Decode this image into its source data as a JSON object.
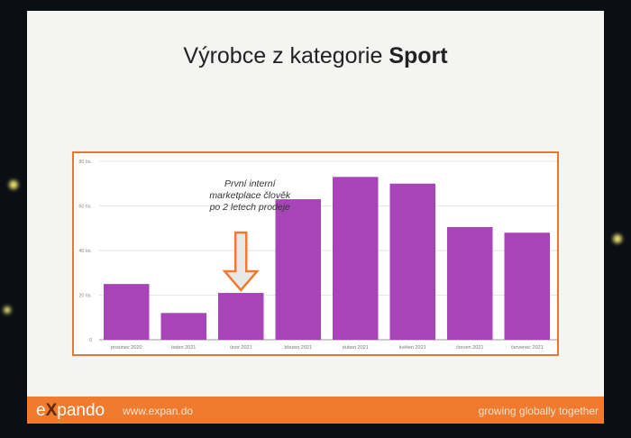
{
  "slide": {
    "title_prefix": "Výrobce z kategorie ",
    "title_bold": "Sport"
  },
  "annotation": {
    "lines": [
      "První interní",
      "marketplace člověk",
      "po 2 letech prodeje"
    ]
  },
  "footer": {
    "logo": "expando",
    "url": "www.expan.do",
    "tagline": "growing globally together"
  },
  "colors": {
    "bar": "#a745b8",
    "accent": "#f07a2e"
  },
  "chart_data": {
    "type": "bar",
    "categories": [
      "prosinec 2020",
      "leden 2021",
      "únor 2021",
      "březen 2021",
      "duben 2021",
      "květen 2021",
      "červen 2021",
      "červenec 2021"
    ],
    "values": [
      25000,
      12000,
      21000,
      63000,
      73000,
      70000,
      50500,
      48000
    ],
    "yticks": [
      0,
      20000,
      40000,
      60000,
      80000
    ],
    "ytick_labels": [
      "0",
      "20 tis.",
      "40 tis.",
      "60 tis.",
      "80 tis."
    ],
    "ylim": [
      0,
      80000
    ],
    "grid": true,
    "annotated_category": "únor 2021"
  }
}
